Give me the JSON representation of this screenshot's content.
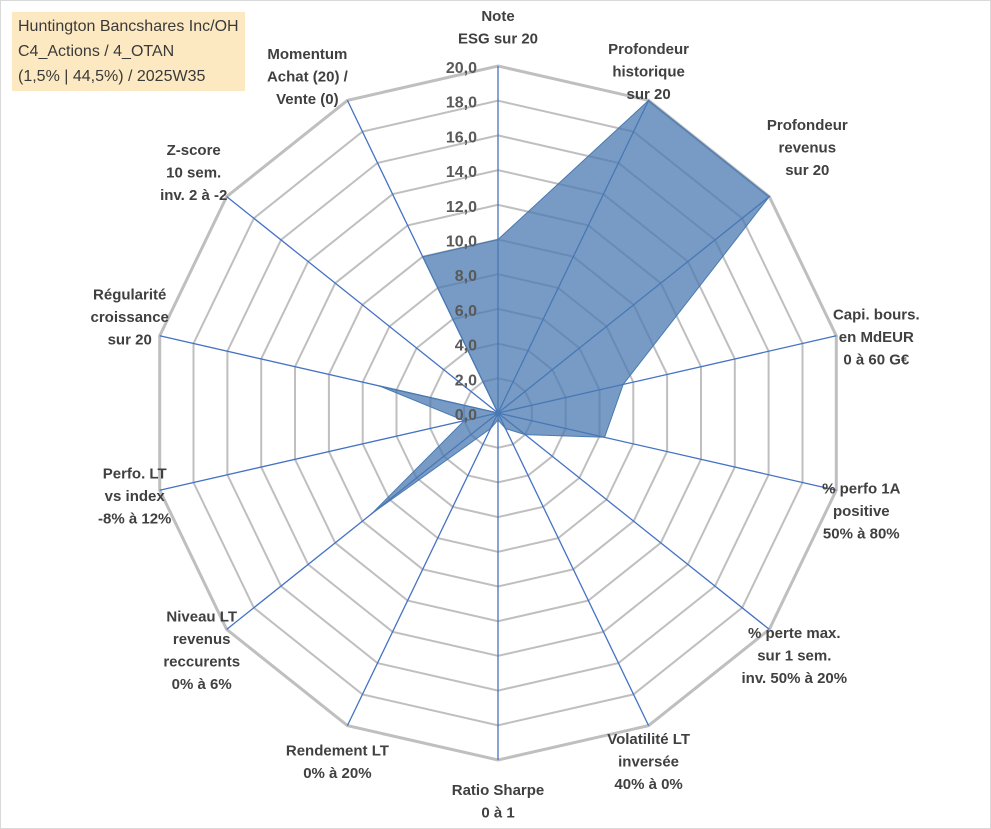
{
  "info_box": {
    "line1": "Huntington Bancshares Inc/OH",
    "line2": "C4_Actions / 4_OTAN",
    "line3": "(1,5% | 44,5%) / 2025W35"
  },
  "colors": {
    "grid": "#bfbfbf",
    "spoke": "#4472c4",
    "fill": "#4a7ab0",
    "fill_opacity": 0.75,
    "info_bg": "#fde9c1"
  },
  "chart_data": {
    "type": "radar",
    "title": "",
    "rmin": 0,
    "rmax": 20,
    "tick_step": 2,
    "tick_labels": [
      "0,0",
      "2,0",
      "4,0",
      "6,0",
      "8,0",
      "10,0",
      "12,0",
      "14,0",
      "16,0",
      "18,0",
      "20,0"
    ],
    "grid": true,
    "axes": [
      {
        "label": [
          "Note",
          "ESG sur 20"
        ],
        "value": 10.0
      },
      {
        "label": [
          "Profondeur",
          "historique",
          "sur 20"
        ],
        "value": 20.0
      },
      {
        "label": [
          "Profondeur",
          "revenus",
          "sur 20"
        ],
        "value": 20.0
      },
      {
        "label": [
          "Capi. bours.",
          "en MdEUR",
          "0 à 60 G€"
        ],
        "value": 7.4
      },
      {
        "label": [
          "% perfo 1A",
          "positive",
          "50% à 80%"
        ],
        "value": 6.3
      },
      {
        "label": [
          "% perte max.",
          "sur 1 sem.",
          "inv. 50% à 20%"
        ],
        "value": 2.0
      },
      {
        "label": [
          "Volatilité LT",
          "inversée",
          "40% à 0%"
        ],
        "value": 1.0
      },
      {
        "label": [
          "Ratio Sharpe",
          "0 à 1"
        ],
        "value": 0.4
      },
      {
        "label": [
          "Rendement LT",
          "0% à 20%"
        ],
        "value": 1.0
      },
      {
        "label": [
          "Niveau LT",
          "revenus",
          "reccurents",
          "0% à 6%"
        ],
        "value": 9.3
      },
      {
        "label": [
          "Perfo. LT",
          "vs index",
          "-8% à 12%"
        ],
        "value": 2.0
      },
      {
        "label": [
          "Régularité",
          "croissance",
          "sur 20"
        ],
        "value": 7.0
      },
      {
        "label": [
          "Z-score",
          "10 sem.",
          "inv. 2 à -2"
        ],
        "value": 0.0
      },
      {
        "label": [
          "Momentum",
          "Achat (20) /",
          "Vente (0)"
        ],
        "value": 10.0
      }
    ]
  }
}
